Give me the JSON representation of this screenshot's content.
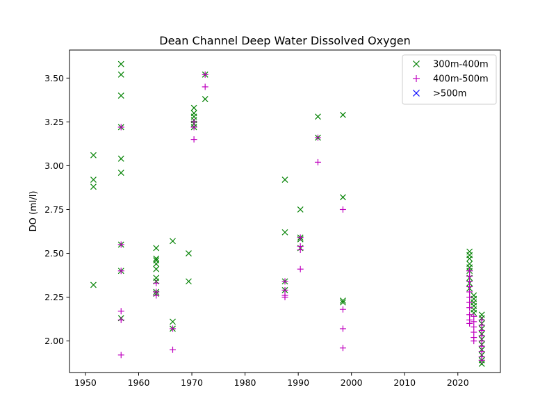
{
  "chart_data": {
    "type": "scatter",
    "title": "Dean Channel Deep Water Dissolved Oxygen",
    "xlabel": "",
    "ylabel": "DO (ml/l)",
    "xlim": [
      1947,
      2028
    ],
    "ylim": [
      1.82,
      3.66
    ],
    "xticks": [
      1950,
      1960,
      1970,
      1980,
      1990,
      2000,
      2010,
      2020
    ],
    "yticks": [
      2.0,
      2.25,
      2.5,
      2.75,
      3.0,
      3.25,
      3.5
    ],
    "grid": false,
    "legend_position": "top-right",
    "series": [
      {
        "name": "300m-400m",
        "marker": "x",
        "color": "#008000",
        "points": [
          [
            1951.5,
            3.06
          ],
          [
            1951.5,
            2.92
          ],
          [
            1951.5,
            2.88
          ],
          [
            1951.5,
            2.32
          ],
          [
            1956.7,
            3.58
          ],
          [
            1956.7,
            3.52
          ],
          [
            1956.7,
            3.4
          ],
          [
            1956.7,
            3.22
          ],
          [
            1956.7,
            3.04
          ],
          [
            1956.7,
            2.96
          ],
          [
            1956.7,
            2.55
          ],
          [
            1956.7,
            2.4
          ],
          [
            1956.7,
            2.13
          ],
          [
            1963.3,
            2.53
          ],
          [
            1963.3,
            2.47
          ],
          [
            1963.3,
            2.46
          ],
          [
            1963.3,
            2.44
          ],
          [
            1963.3,
            2.41
          ],
          [
            1963.3,
            2.36
          ],
          [
            1963.3,
            2.34
          ],
          [
            1963.3,
            2.28
          ],
          [
            1963.3,
            2.27
          ],
          [
            1966.4,
            2.57
          ],
          [
            1966.4,
            2.11
          ],
          [
            1966.4,
            2.07
          ],
          [
            1969.4,
            2.5
          ],
          [
            1969.4,
            2.34
          ],
          [
            1970.4,
            3.33
          ],
          [
            1970.4,
            3.3
          ],
          [
            1970.4,
            3.28
          ],
          [
            1970.4,
            3.26
          ],
          [
            1970.4,
            3.24
          ],
          [
            1970.4,
            3.22
          ],
          [
            1972.5,
            3.52
          ],
          [
            1972.5,
            3.38
          ],
          [
            1987.5,
            2.92
          ],
          [
            1987.5,
            2.62
          ],
          [
            1987.5,
            2.34
          ],
          [
            1987.5,
            2.29
          ],
          [
            1990.4,
            2.75
          ],
          [
            1990.4,
            2.59
          ],
          [
            1990.4,
            2.58
          ],
          [
            1990.4,
            2.53
          ],
          [
            1993.7,
            3.28
          ],
          [
            1993.7,
            3.16
          ],
          [
            1998.4,
            3.29
          ],
          [
            1998.4,
            2.82
          ],
          [
            1998.4,
            2.23
          ],
          [
            1998.4,
            2.22
          ],
          [
            2022.2,
            2.51
          ],
          [
            2022.2,
            2.49
          ],
          [
            2022.2,
            2.47
          ],
          [
            2022.2,
            2.44
          ],
          [
            2022.2,
            2.42
          ],
          [
            2022.2,
            2.4
          ],
          [
            2022.2,
            2.36
          ],
          [
            2022.2,
            2.33
          ],
          [
            2022.2,
            2.3
          ],
          [
            2023.0,
            2.26
          ],
          [
            2023.0,
            2.24
          ],
          [
            2023.0,
            2.22
          ],
          [
            2023.0,
            2.2
          ],
          [
            2023.0,
            2.18
          ],
          [
            2023.0,
            2.16
          ],
          [
            2024.5,
            2.15
          ],
          [
            2024.5,
            2.13
          ],
          [
            2024.5,
            2.1
          ],
          [
            2024.5,
            2.07
          ],
          [
            2024.5,
            2.04
          ],
          [
            2024.5,
            2.01
          ],
          [
            2024.5,
            1.98
          ],
          [
            2024.5,
            1.95
          ],
          [
            2024.5,
            1.92
          ],
          [
            2024.5,
            1.89
          ],
          [
            2024.5,
            1.87
          ]
        ]
      },
      {
        "name": "400m-500m",
        "marker": "+",
        "color": "#bf00bf",
        "points": [
          [
            1956.7,
            3.22
          ],
          [
            1956.7,
            2.55
          ],
          [
            1956.7,
            2.4
          ],
          [
            1956.7,
            2.17
          ],
          [
            1956.7,
            2.12
          ],
          [
            1956.7,
            1.92
          ],
          [
            1963.3,
            2.33
          ],
          [
            1963.3,
            2.28
          ],
          [
            1963.3,
            2.26
          ],
          [
            1966.4,
            2.07
          ],
          [
            1966.4,
            1.95
          ],
          [
            1970.4,
            3.25
          ],
          [
            1970.4,
            3.22
          ],
          [
            1970.4,
            3.15
          ],
          [
            1972.5,
            3.52
          ],
          [
            1972.5,
            3.45
          ],
          [
            1987.5,
            2.34
          ],
          [
            1987.5,
            2.29
          ],
          [
            1987.5,
            2.26
          ],
          [
            1987.5,
            2.25
          ],
          [
            1990.4,
            2.59
          ],
          [
            1990.4,
            2.54
          ],
          [
            1990.4,
            2.52
          ],
          [
            1990.4,
            2.41
          ],
          [
            1993.7,
            3.16
          ],
          [
            1993.7,
            3.02
          ],
          [
            1998.4,
            2.75
          ],
          [
            1998.4,
            2.18
          ],
          [
            1998.4,
            2.07
          ],
          [
            1998.4,
            1.96
          ],
          [
            2022.2,
            2.4
          ],
          [
            2022.2,
            2.37
          ],
          [
            2022.2,
            2.34
          ],
          [
            2022.2,
            2.31
          ],
          [
            2022.2,
            2.28
          ],
          [
            2022.2,
            2.25
          ],
          [
            2022.2,
            2.22
          ],
          [
            2022.2,
            2.19
          ],
          [
            2022.2,
            2.15
          ],
          [
            2022.2,
            2.12
          ],
          [
            2022.2,
            2.1
          ],
          [
            2023.0,
            2.14
          ],
          [
            2023.0,
            2.11
          ],
          [
            2023.0,
            2.08
          ],
          [
            2023.0,
            2.05
          ],
          [
            2023.0,
            2.02
          ],
          [
            2023.0,
            2.0
          ],
          [
            2024.5,
            2.12
          ],
          [
            2024.5,
            2.09
          ],
          [
            2024.5,
            2.06
          ],
          [
            2024.5,
            2.03
          ],
          [
            2024.5,
            2.0
          ],
          [
            2024.5,
            1.97
          ],
          [
            2024.5,
            1.94
          ],
          [
            2024.5,
            1.91
          ],
          [
            2024.5,
            1.89
          ]
        ]
      },
      {
        "name": ">500m",
        "marker": "x",
        "color": "#0000ff",
        "points": []
      }
    ]
  }
}
